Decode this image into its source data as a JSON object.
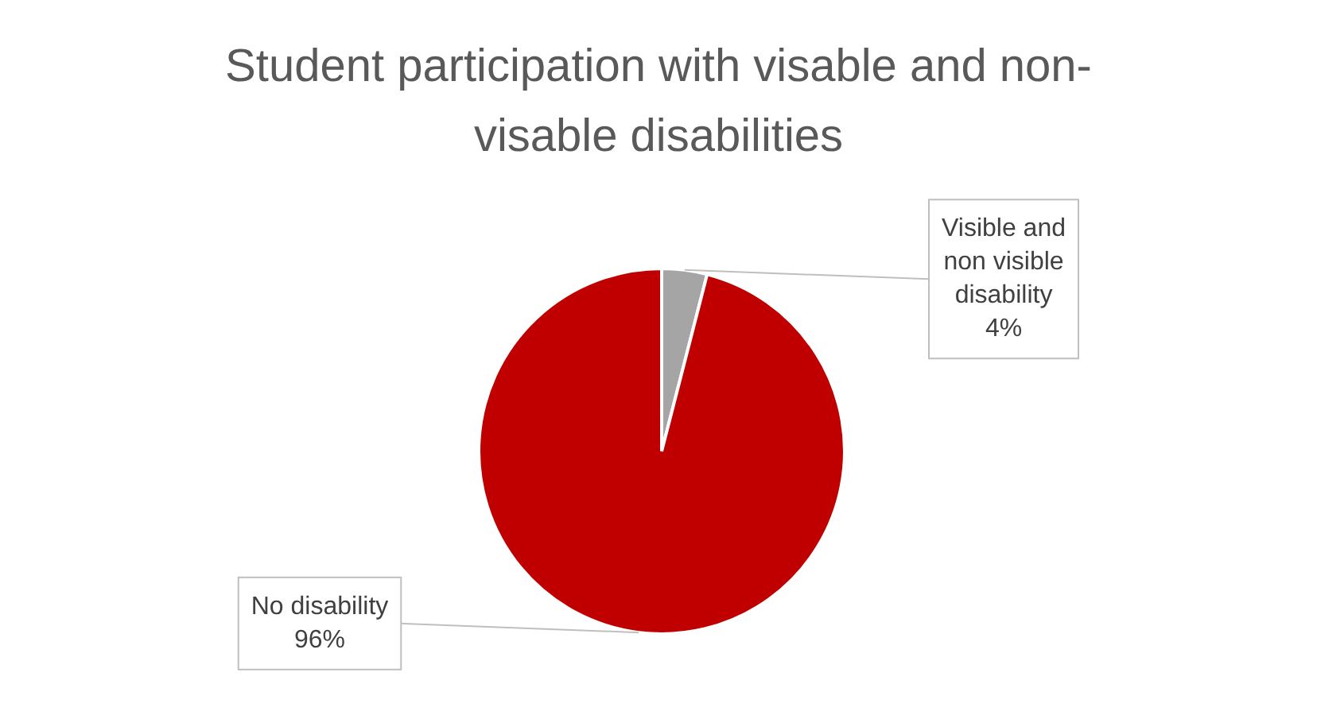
{
  "chart_data": {
    "type": "pie",
    "title": "Student participation with visable and non-visable disabilities",
    "categories": [
      "Visible and non visible disability",
      "No disability"
    ],
    "values": [
      4,
      96
    ],
    "colors": [
      "#a5a5a5",
      "#c00000"
    ],
    "value_labels": [
      "4%",
      "96%"
    ],
    "legend": false
  }
}
